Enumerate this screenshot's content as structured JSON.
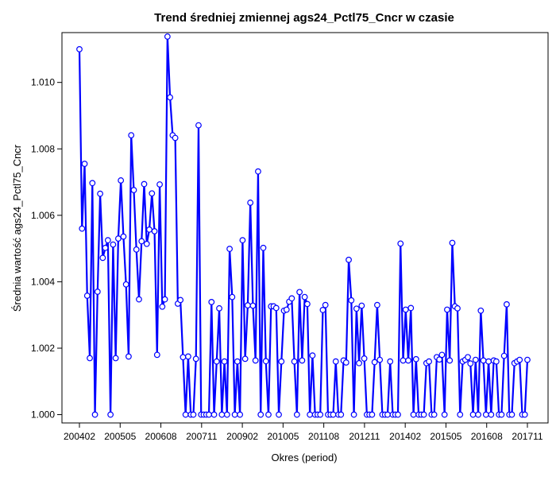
{
  "chart_data": {
    "type": "line",
    "title": "Trend średniej zmiennej ags24_Pctl75_Cncr w czasie",
    "xlabel": "Okres (period)",
    "ylabel": "Średnia wartość ags24_Pctl75_Cncr",
    "x_tick_labels": [
      "200402",
      "200505",
      "200608",
      "200711",
      "200902",
      "201005",
      "201108",
      "201211",
      "201402",
      "201505",
      "201608",
      "201711"
    ],
    "y_ticks": [
      1.0,
      1.002,
      1.004,
      1.006,
      1.008,
      1.01
    ],
    "y_tick_labels": [
      "1.000",
      "1.002",
      "1.004",
      "1.006",
      "1.008",
      "1.010"
    ],
    "ylim": [
      0.99975,
      1.0115
    ],
    "grid": false,
    "line_color": "#0000ff",
    "series": [
      {
        "values": [
          1.011,
          1.0056,
          1.00755,
          1.00358,
          1.0017,
          1.00697,
          1.0,
          1.0037,
          1.00665,
          1.00472,
          1.00502,
          1.00525,
          1.0,
          1.00512,
          1.0017,
          1.0053,
          1.00705,
          1.00536,
          1.00392,
          1.00175,
          1.00841,
          1.00676,
          1.00497,
          1.00347,
          1.00522,
          1.00694,
          1.00514,
          1.00557,
          1.00666,
          1.00552,
          1.0018,
          1.00693,
          1.00325,
          1.00347,
          1.01138,
          1.00955,
          1.00841,
          1.00833,
          1.00334,
          1.00345,
          1.00173,
          1.0,
          1.00175,
          1.0,
          1.0,
          1.00168,
          1.00871,
          1.0,
          1.0,
          1.0,
          1.0,
          1.00339,
          1.0,
          1.0016,
          1.0032,
          1.0,
          1.0016,
          1.0,
          1.00499,
          1.00354,
          1.0,
          1.0016,
          1.0,
          1.00525,
          1.00168,
          1.00329,
          1.00638,
          1.00328,
          1.00163,
          1.00732,
          1.0,
          1.00502,
          1.00161,
          1.0,
          1.00326,
          1.00326,
          1.00321,
          1.0,
          1.0016,
          1.00313,
          1.00316,
          1.0034,
          1.0035,
          1.0016,
          1.0,
          1.00369,
          1.00163,
          1.00354,
          1.00333,
          1.0,
          1.00178,
          1.0,
          1.0,
          1.0,
          1.00315,
          1.0033,
          1.0,
          1.0,
          1.0,
          1.0016,
          1.0,
          1.0,
          1.00163,
          1.00157,
          1.00466,
          1.00344,
          1.0,
          1.00319,
          1.00155,
          1.00328,
          1.00169,
          1.0,
          1.0,
          1.0,
          1.00158,
          1.0033,
          1.00165,
          1.0,
          1.0,
          1.0,
          1.0016,
          1.0,
          1.0,
          1.0,
          1.00515,
          1.00163,
          1.00316,
          1.00163,
          1.00321,
          1.0,
          1.00167,
          1.0,
          1.0,
          1.0,
          1.00155,
          1.0016,
          1.0,
          1.0,
          1.00173,
          1.00166,
          1.0018,
          1.0,
          1.00316,
          1.00163,
          1.00517,
          1.00326,
          1.0032,
          1.0,
          1.0016,
          1.00165,
          1.00173,
          1.00154,
          1.0,
          1.00165,
          1.0,
          1.00313,
          1.00163,
          1.0,
          1.0016,
          1.0,
          1.00163,
          1.0016,
          1.0,
          1.0,
          1.00177,
          1.00332,
          1.0,
          1.0,
          1.00155,
          1.0016,
          1.00165,
          1.0,
          1.0,
          1.00165
        ]
      }
    ]
  }
}
